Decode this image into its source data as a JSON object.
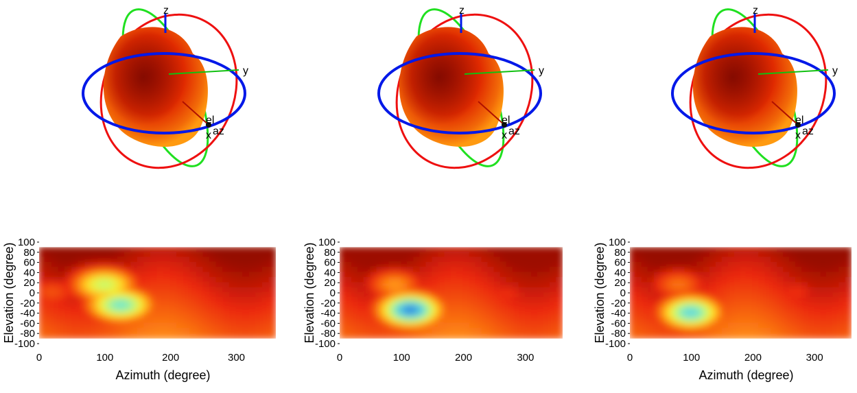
{
  "panels": [
    {
      "globe": {
        "axis_labels": {
          "z": "z",
          "y": "y",
          "x": "x",
          "el": "el",
          "az": "az"
        }
      },
      "chart_data": {
        "type": "heatmap",
        "xlabel": "Azimuth (degree)",
        "ylabel": "Elevation (degree)",
        "xlim": [
          0,
          360
        ],
        "ylim": [
          -100,
          100
        ],
        "x_ticks": [
          0,
          100,
          200,
          300
        ],
        "y_ticks": [
          100,
          80,
          60,
          40,
          20,
          0,
          -20,
          -40,
          -60,
          -80,
          -100
        ],
        "data_extent": {
          "azimuth": [
            0,
            360
          ],
          "elevation": [
            -90,
            90
          ]
        },
        "colormap": "hot (dark red = high, yellow/cyan/blue = low)",
        "low_regions": [
          {
            "azimuth": 100,
            "elevation": 15,
            "level": 0.45
          },
          {
            "azimuth": 125,
            "elevation": -25,
            "level": 0.3
          },
          {
            "azimuth": 20,
            "elevation": 0,
            "level": 0.8
          }
        ]
      }
    },
    {
      "globe": {
        "axis_labels": {
          "z": "z",
          "y": "y",
          "x": "x",
          "el": "el",
          "az": "az"
        }
      },
      "chart_data": {
        "type": "heatmap",
        "xlabel": "",
        "ylabel": "Elevation (degree)",
        "xlim": [
          0,
          360
        ],
        "ylim": [
          -100,
          100
        ],
        "x_ticks": [
          0,
          100,
          200,
          300
        ],
        "y_ticks": [
          100,
          80,
          60,
          40,
          20,
          0,
          -20,
          -40,
          -60,
          -80,
          -100
        ],
        "data_extent": {
          "azimuth": [
            0,
            360
          ],
          "elevation": [
            -90,
            90
          ]
        },
        "colormap": "hot (dark red = high, yellow/cyan/blue = low)",
        "low_regions": [
          {
            "azimuth": 115,
            "elevation": -35,
            "level": 0.1
          },
          {
            "azimuth": 90,
            "elevation": 15,
            "level": 0.7
          },
          {
            "azimuth": 270,
            "elevation": -5,
            "level": 0.85
          }
        ]
      }
    },
    {
      "globe": {
        "axis_labels": {
          "z": "z",
          "y": "y",
          "x": "x",
          "el": "el",
          "az": "az"
        }
      },
      "chart_data": {
        "type": "heatmap",
        "xlabel": "Azimuth (degree)",
        "ylabel": "Elevation (degree)",
        "xlim": [
          0,
          360
        ],
        "ylim": [
          -100,
          100
        ],
        "x_ticks": [
          0,
          100,
          200,
          300
        ],
        "y_ticks": [
          100,
          80,
          60,
          40,
          20,
          0,
          -20,
          -40,
          -60,
          -80,
          -100
        ],
        "data_extent": {
          "azimuth": [
            0,
            360
          ],
          "elevation": [
            -90,
            90
          ]
        },
        "colormap": "hot (dark red = high, yellow/cyan/blue = low)",
        "low_regions": [
          {
            "azimuth": 100,
            "elevation": -40,
            "level": 0.25
          },
          {
            "azimuth": 80,
            "elevation": 15,
            "level": 0.75
          },
          {
            "azimuth": 270,
            "elevation": 0,
            "level": 0.85
          }
        ]
      }
    }
  ],
  "colors": {
    "equator_ring": "#0018e8",
    "meridian_ring": "#ee1010",
    "green_ring": "#20e020",
    "axis_line": "#10c010",
    "sphere_dark": "#8a0a00",
    "sphere_mid": "#e02800",
    "sphere_light": "#ff9a10"
  }
}
